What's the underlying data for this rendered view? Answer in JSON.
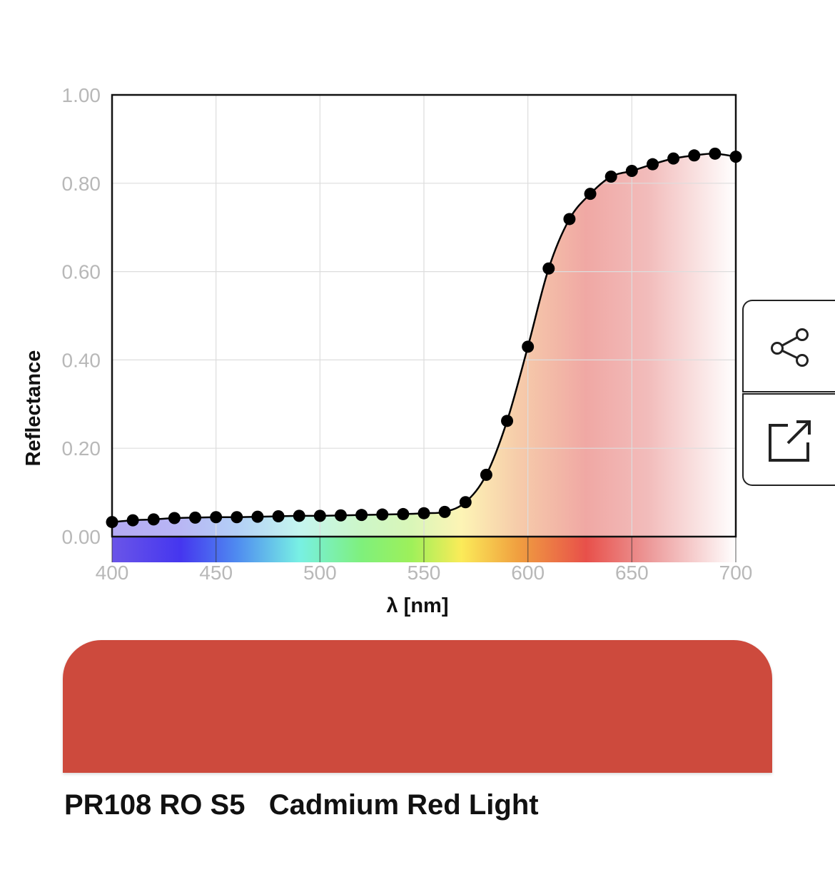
{
  "chart_data": {
    "type": "line",
    "xlabel": "λ [nm]",
    "ylabel": "Reflectance",
    "xlim": [
      400,
      700
    ],
    "ylim": [
      0,
      1
    ],
    "x_ticks": [
      "400",
      "450",
      "500",
      "550",
      "600",
      "650",
      "700"
    ],
    "y_ticks": [
      "0.00",
      "0.20",
      "0.40",
      "0.60",
      "0.80",
      "1.00"
    ],
    "grid": true,
    "series": [
      {
        "x": [
          400,
          410,
          420,
          430,
          440,
          450,
          460,
          470,
          480,
          490,
          500,
          510,
          520,
          530,
          540,
          550,
          560,
          570,
          580,
          590,
          600,
          610,
          620,
          630,
          640,
          650,
          660,
          670,
          680,
          690,
          700
        ],
        "values": [
          0.033,
          0.037,
          0.039,
          0.042,
          0.043,
          0.044,
          0.044,
          0.045,
          0.046,
          0.047,
          0.047,
          0.048,
          0.049,
          0.05,
          0.051,
          0.053,
          0.056,
          0.078,
          0.14,
          0.262,
          0.43,
          0.607,
          0.719,
          0.776,
          0.815,
          0.828,
          0.843,
          0.856,
          0.863,
          0.867,
          0.86
        ]
      }
    ]
  },
  "colors": {
    "swatch": "#cd4a3d",
    "curve": "#000000",
    "grid": "#dddddd"
  },
  "buttons": {
    "share_icon": "share-icon",
    "open_icon": "external-link-icon"
  },
  "pigment": {
    "label": "PR108 RO S5   Cadmium Red Light"
  }
}
